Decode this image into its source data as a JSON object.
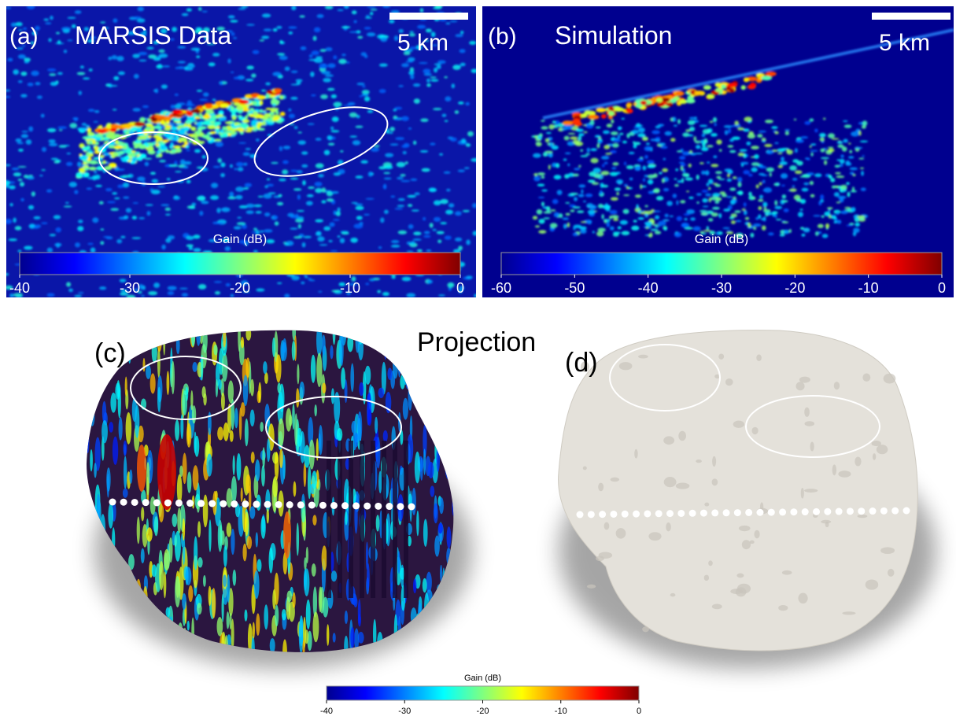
{
  "panels": [
    {
      "label": "(a)",
      "title": "MARSIS Data",
      "scale_bar": "5 km",
      "colorbar": {
        "label": "Gain (dB)",
        "lim": [
          -40,
          0
        ],
        "ticks": [
          -40,
          -30,
          -20,
          -10,
          0
        ]
      }
    },
    {
      "label": "(b)",
      "title": "Simulation",
      "scale_bar": "5 km",
      "colorbar": {
        "label": "Gain (dB)",
        "lim": [
          -60,
          0
        ],
        "ticks": [
          -60,
          -50,
          -40,
          -30,
          -20,
          -10,
          0
        ]
      }
    },
    {
      "label": "(c)"
    },
    {
      "label": "(d)"
    }
  ],
  "center_title": "Projection",
  "colorbar": {
    "label": "Gain (dB)",
    "lim": [
      -40,
      0
    ],
    "ticks": [
      -40,
      -30,
      -20,
      -10,
      0
    ]
  }
}
